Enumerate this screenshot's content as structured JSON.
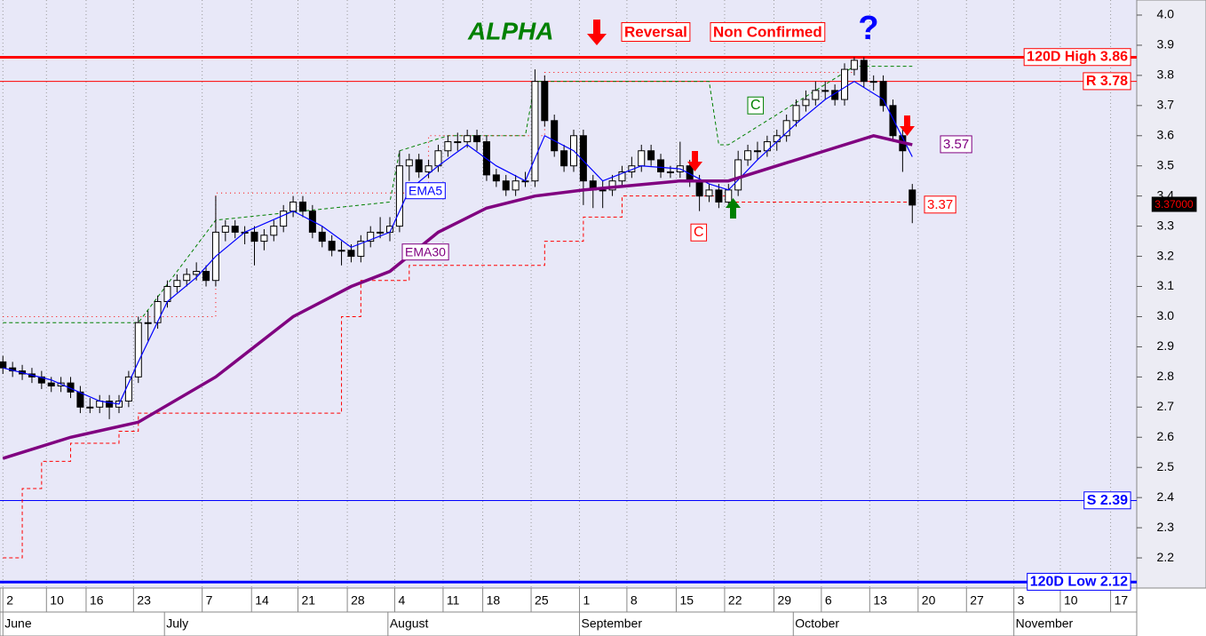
{
  "chart_data": {
    "type": "candlestick",
    "x": [
      0,
      1,
      2,
      3,
      4,
      5,
      6,
      7,
      8,
      9,
      10,
      11,
      12,
      13,
      14,
      15,
      16,
      17,
      18,
      19,
      20,
      21,
      22,
      23,
      24,
      25,
      26,
      27,
      28,
      29,
      30,
      31,
      32,
      33,
      34,
      35,
      36,
      37,
      38,
      39,
      40,
      41,
      42,
      43,
      44,
      45,
      46,
      47,
      48,
      49,
      50,
      51,
      52,
      53,
      54,
      55,
      56,
      57,
      58,
      59,
      60,
      61,
      62,
      63,
      64,
      65,
      66,
      67,
      68,
      69,
      70,
      71,
      72,
      73,
      74,
      75,
      76,
      77,
      78,
      79,
      80,
      81,
      82,
      83,
      84,
      85,
      86,
      87,
      88,
      89,
      90,
      91,
      92,
      93,
      94
    ],
    "ohlc": [
      [
        2.85,
        2.87,
        2.81,
        2.83
      ],
      [
        2.83,
        2.85,
        2.8,
        2.82
      ],
      [
        2.82,
        2.84,
        2.79,
        2.81
      ],
      [
        2.81,
        2.83,
        2.78,
        2.8
      ],
      [
        2.8,
        2.82,
        2.76,
        2.78
      ],
      [
        2.78,
        2.8,
        2.75,
        2.77
      ],
      [
        2.77,
        2.8,
        2.75,
        2.78
      ],
      [
        2.78,
        2.8,
        2.73,
        2.75
      ],
      [
        2.75,
        2.77,
        2.68,
        2.7
      ],
      [
        2.7,
        2.73,
        2.68,
        2.7
      ],
      [
        2.7,
        2.74,
        2.68,
        2.72
      ],
      [
        2.72,
        2.74,
        2.66,
        2.7
      ],
      [
        2.7,
        2.74,
        2.68,
        2.72
      ],
      [
        2.72,
        2.82,
        2.7,
        2.8
      ],
      [
        2.8,
        3.0,
        2.78,
        2.98
      ],
      [
        2.98,
        3.02,
        2.92,
        2.98
      ],
      [
        2.98,
        3.07,
        2.96,
        3.05
      ],
      [
        3.05,
        3.12,
        3.03,
        3.1
      ],
      [
        3.1,
        3.14,
        3.08,
        3.12
      ],
      [
        3.12,
        3.16,
        3.1,
        3.14
      ],
      [
        3.14,
        3.18,
        3.12,
        3.15
      ],
      [
        3.15,
        3.17,
        3.1,
        3.12
      ],
      [
        3.12,
        3.4,
        3.1,
        3.28
      ],
      [
        3.28,
        3.32,
        3.25,
        3.3
      ],
      [
        3.3,
        3.32,
        3.26,
        3.28
      ],
      [
        3.28,
        3.3,
        3.24,
        3.28
      ],
      [
        3.28,
        3.3,
        3.17,
        3.25
      ],
      [
        3.25,
        3.29,
        3.22,
        3.27
      ],
      [
        3.27,
        3.32,
        3.25,
        3.3
      ],
      [
        3.3,
        3.37,
        3.28,
        3.35
      ],
      [
        3.35,
        3.4,
        3.33,
        3.38
      ],
      [
        3.38,
        3.4,
        3.33,
        3.35
      ],
      [
        3.35,
        3.37,
        3.26,
        3.28
      ],
      [
        3.28,
        3.3,
        3.23,
        3.25
      ],
      [
        3.25,
        3.27,
        3.2,
        3.22
      ],
      [
        3.22,
        3.25,
        3.17,
        3.22
      ],
      [
        3.22,
        3.24,
        3.18,
        3.2
      ],
      [
        3.2,
        3.27,
        3.18,
        3.25
      ],
      [
        3.25,
        3.3,
        3.23,
        3.28
      ],
      [
        3.28,
        3.33,
        3.26,
        3.28
      ],
      [
        3.28,
        3.33,
        3.25,
        3.3
      ],
      [
        3.3,
        3.55,
        3.28,
        3.5
      ],
      [
        3.5,
        3.54,
        3.45,
        3.52
      ],
      [
        3.52,
        3.54,
        3.46,
        3.48
      ],
      [
        3.48,
        3.52,
        3.46,
        3.5
      ],
      [
        3.5,
        3.57,
        3.48,
        3.55
      ],
      [
        3.55,
        3.6,
        3.53,
        3.58
      ],
      [
        3.58,
        3.61,
        3.55,
        3.58
      ],
      [
        3.58,
        3.62,
        3.56,
        3.6
      ],
      [
        3.6,
        3.62,
        3.55,
        3.58
      ],
      [
        3.58,
        3.6,
        3.45,
        3.47
      ],
      [
        3.47,
        3.49,
        3.43,
        3.45
      ],
      [
        3.45,
        3.47,
        3.4,
        3.42
      ],
      [
        3.42,
        3.47,
        3.4,
        3.45
      ],
      [
        3.45,
        3.48,
        3.43,
        3.45
      ],
      [
        3.45,
        3.82,
        3.43,
        3.78
      ],
      [
        3.78,
        3.8,
        3.63,
        3.65
      ],
      [
        3.65,
        3.67,
        3.53,
        3.55
      ],
      [
        3.55,
        3.57,
        3.48,
        3.5
      ],
      [
        3.5,
        3.62,
        3.48,
        3.6
      ],
      [
        3.6,
        3.62,
        3.37,
        3.45
      ],
      [
        3.45,
        3.47,
        3.36,
        3.42
      ],
      [
        3.42,
        3.45,
        3.36,
        3.42
      ],
      [
        3.42,
        3.47,
        3.4,
        3.45
      ],
      [
        3.45,
        3.5,
        3.43,
        3.48
      ],
      [
        3.48,
        3.53,
        3.46,
        3.5
      ],
      [
        3.5,
        3.57,
        3.48,
        3.55
      ],
      [
        3.55,
        3.57,
        3.5,
        3.52
      ],
      [
        3.52,
        3.54,
        3.46,
        3.48
      ],
      [
        3.48,
        3.5,
        3.46,
        3.48
      ],
      [
        3.48,
        3.58,
        3.46,
        3.5
      ],
      [
        3.5,
        3.52,
        3.43,
        3.45
      ],
      [
        3.45,
        3.47,
        3.35,
        3.4
      ],
      [
        3.4,
        3.44,
        3.38,
        3.42
      ],
      [
        3.42,
        3.44,
        3.36,
        3.38
      ],
      [
        3.38,
        3.44,
        3.36,
        3.42
      ],
      [
        3.42,
        3.55,
        3.4,
        3.52
      ],
      [
        3.52,
        3.57,
        3.5,
        3.55
      ],
      [
        3.55,
        3.58,
        3.52,
        3.55
      ],
      [
        3.55,
        3.6,
        3.53,
        3.58
      ],
      [
        3.58,
        3.62,
        3.55,
        3.6
      ],
      [
        3.6,
        3.67,
        3.58,
        3.65
      ],
      [
        3.65,
        3.72,
        3.63,
        3.7
      ],
      [
        3.7,
        3.75,
        3.68,
        3.72
      ],
      [
        3.72,
        3.78,
        3.7,
        3.75
      ],
      [
        3.75,
        3.78,
        3.72,
        3.75
      ],
      [
        3.75,
        3.77,
        3.7,
        3.72
      ],
      [
        3.72,
        3.84,
        3.7,
        3.82
      ],
      [
        3.82,
        3.86,
        3.8,
        3.85
      ],
      [
        3.85,
        3.86,
        3.76,
        3.78
      ],
      [
        3.78,
        3.8,
        3.75,
        3.78
      ],
      [
        3.78,
        3.8,
        3.68,
        3.7
      ],
      [
        3.7,
        3.72,
        3.58,
        3.6
      ],
      [
        3.6,
        3.62,
        3.48,
        3.55
      ],
      [
        3.42,
        3.44,
        3.31,
        3.37
      ]
    ],
    "up_color": "#ffffff",
    "down_color": "#000000",
    "xlim": [
      -0.3,
      117.2
    ],
    "ylim": [
      2.1,
      4.05
    ],
    "yticks": [
      2.2,
      2.3,
      2.4,
      2.5,
      2.6,
      2.7,
      2.8,
      2.9,
      {
        "value": 3,
        "label": "3.0"
      },
      3.1,
      3.2,
      3.3,
      3.4,
      3.5,
      3.6,
      3.7,
      3.8,
      3.9,
      {
        "value": 4,
        "label": "4.0"
      }
    ],
    "xticks": [
      {
        "value": 0,
        "label": "2"
      },
      {
        "value": 4.5,
        "label": "10"
      },
      {
        "value": 8.6,
        "label": "16"
      },
      {
        "value": 13.5,
        "label": "23"
      },
      {
        "value": 20.6,
        "label": "7"
      },
      {
        "value": 25.7,
        "label": "14"
      },
      {
        "value": 30.5,
        "label": "21"
      },
      {
        "value": 35.6,
        "label": "28"
      },
      {
        "value": 40.5,
        "label": "4"
      },
      {
        "value": 45.5,
        "label": "11"
      },
      {
        "value": 49.6,
        "label": "18"
      },
      {
        "value": 54.6,
        "label": "25"
      },
      {
        "value": 59.6,
        "label": "1"
      },
      {
        "value": 64.5,
        "label": "8"
      },
      {
        "value": 69.6,
        "label": "15"
      },
      {
        "value": 74.6,
        "label": "22"
      },
      {
        "value": 79.7,
        "label": "29"
      },
      {
        "value": 84.6,
        "label": "6"
      },
      {
        "value": 89.6,
        "label": "13"
      },
      {
        "value": 94.6,
        "label": "20"
      },
      {
        "value": 99.6,
        "label": "27"
      },
      {
        "value": 104.5,
        "label": "3"
      },
      {
        "value": 109.3,
        "label": "10"
      },
      {
        "value": 114.5,
        "label": "17"
      }
    ],
    "month_ticks": [
      {
        "value": 0,
        "label": "June"
      },
      {
        "value": 16.7,
        "label": "July"
      },
      {
        "value": 39.8,
        "label": "August"
      },
      {
        "value": 59.6,
        "label": "September"
      },
      {
        "value": 81.7,
        "label": "October"
      },
      {
        "value": 104.5,
        "label": "November"
      }
    ],
    "vgrid": true,
    "lines": [
      {
        "name": "EMA5",
        "color": "#0000ff",
        "x": [
          0,
          5,
          10,
          12,
          14,
          17,
          20,
          22,
          25,
          30,
          33,
          36,
          40,
          42,
          45,
          48,
          51,
          54,
          56,
          59,
          62,
          66,
          70,
          73,
          75,
          78,
          82,
          85,
          88,
          91,
          94
        ],
        "values": [
          2.83,
          2.79,
          2.72,
          2.71,
          2.85,
          3.05,
          3.13,
          3.2,
          3.28,
          3.35,
          3.3,
          3.23,
          3.28,
          3.42,
          3.5,
          3.57,
          3.5,
          3.45,
          3.6,
          3.55,
          3.45,
          3.5,
          3.49,
          3.44,
          3.42,
          3.52,
          3.64,
          3.72,
          3.78,
          3.72,
          3.53
        ]
      },
      {
        "name": "EMA30",
        "color": "#800080",
        "x": [
          0,
          7,
          14,
          22,
          30,
          36,
          40,
          45,
          50,
          55,
          60,
          70,
          75,
          80,
          85,
          90,
          94
        ],
        "values": [
          2.53,
          2.6,
          2.65,
          2.8,
          3.0,
          3.1,
          3.15,
          3.28,
          3.36,
          3.4,
          3.42,
          3.45,
          3.45,
          3.5,
          3.55,
          3.6,
          3.57
        ]
      }
    ],
    "stops": [
      {
        "color": "#ff0000",
        "style": "dash",
        "step": true,
        "x": [
          0,
          2,
          4,
          7,
          12,
          14,
          31,
          35,
          37,
          42,
          55,
          56,
          60,
          64,
          75,
          94
        ],
        "values": [
          2.2,
          2.43,
          2.52,
          2.58,
          2.62,
          2.68,
          2.68,
          3.0,
          3.12,
          3.17,
          3.17,
          3.25,
          3.33,
          3.4,
          3.38,
          3.37
        ]
      },
      {
        "color": "#008000",
        "style": "dash",
        "step": false,
        "x": [
          0,
          14,
          22,
          40,
          41,
          46,
          54,
          55,
          73,
          74,
          75,
          88,
          94
        ],
        "values": [
          2.98,
          2.98,
          3.32,
          3.38,
          3.55,
          3.6,
          3.6,
          3.78,
          3.78,
          3.57,
          3.57,
          3.83,
          3.83
        ]
      },
      {
        "color": "#ff0000",
        "style": "dot",
        "step": true,
        "x": [
          0,
          14,
          22,
          40,
          44,
          55,
          56,
          88
        ],
        "values": [
          3.0,
          3.0,
          3.41,
          3.41,
          3.6,
          3.6,
          3.81,
          3.81
        ]
      }
    ],
    "levels": [
      {
        "label": "120D High 3.86",
        "value": 3.86,
        "color": "#ff0000",
        "line_width": 3
      },
      {
        "label": "R 3.78",
        "value": 3.78,
        "color": "#ff0000",
        "line_width": 1
      },
      {
        "label": "S 2.39",
        "value": 2.39,
        "color": "#0000ff",
        "line_width": 1
      },
      {
        "label": "120D Low 2.12",
        "value": 2.12,
        "color": "#0000ff",
        "line_width": 3
      }
    ],
    "tags": [
      {
        "value": 3.57,
        "color": "#800080"
      },
      {
        "value": 3.37,
        "color": "#ff0000"
      }
    ],
    "last_price": {
      "value": 3.37,
      "label": "3.37000"
    },
    "annotations": {
      "title": "ALPHA",
      "signal": "Reversal",
      "status": "Non Confirmed",
      "question": "?",
      "marks": [
        "C",
        "C"
      ]
    }
  }
}
